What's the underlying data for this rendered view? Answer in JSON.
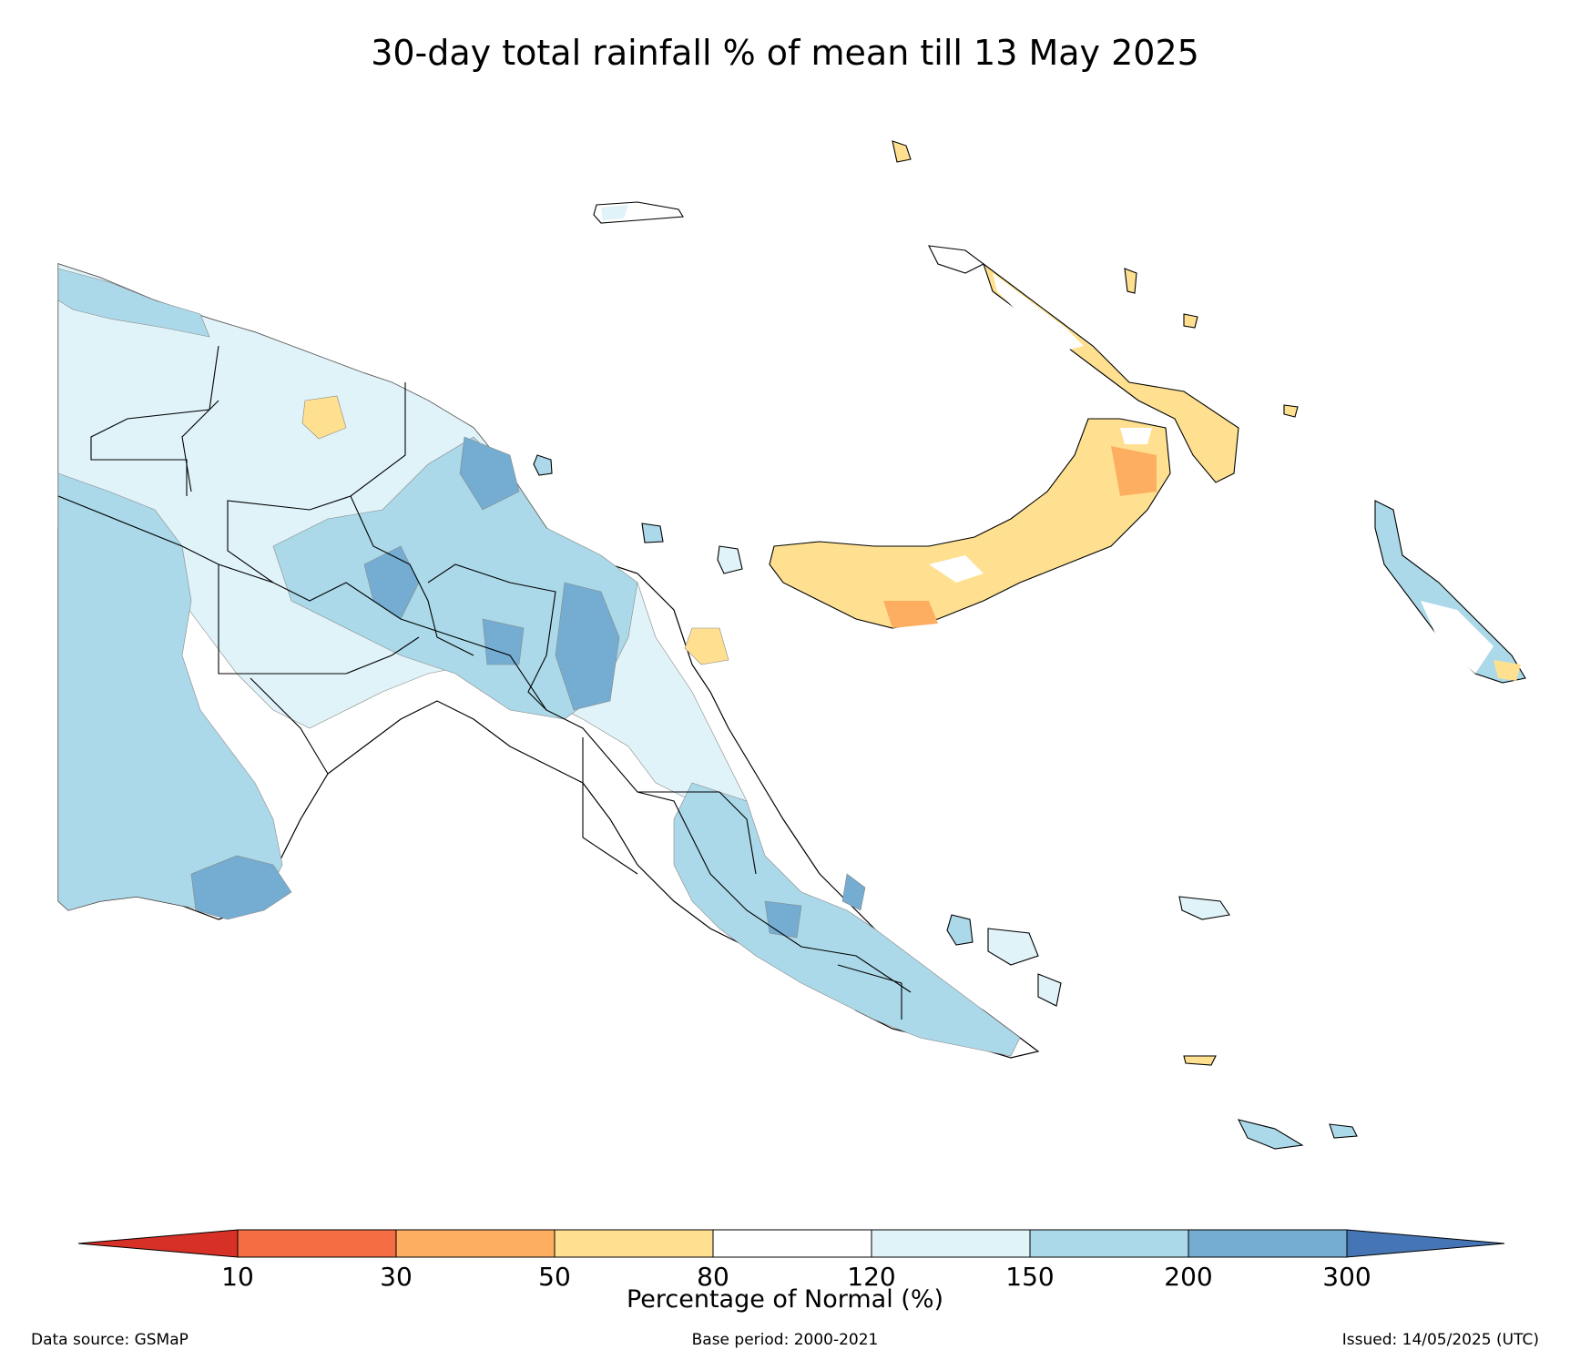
{
  "title": "30-day total rainfall % of mean till 13 May 2025",
  "colorbar": {
    "label": "Percentage of Normal (%)",
    "ticks": [
      "10",
      "30",
      "50",
      "80",
      "120",
      "150",
      "200",
      "300"
    ],
    "bins": [
      {
        "range": "<10",
        "color": "#d73027"
      },
      {
        "range": "10-30",
        "color": "#f46d43"
      },
      {
        "range": "30-50",
        "color": "#fdae61"
      },
      {
        "range": "50-80",
        "color": "#fee090"
      },
      {
        "range": "80-120",
        "color": "#ffffff"
      },
      {
        "range": "120-150",
        "color": "#e0f3f8"
      },
      {
        "range": "150-200",
        "color": "#abd9e9"
      },
      {
        "range": "200-300",
        "color": "#74add1"
      },
      {
        "range": ">300",
        "color": "#4575b4"
      }
    ]
  },
  "footer": {
    "source": "Data source: GSMaP",
    "base_period": "Base period: 2000-2021",
    "issued": "Issued: 14/05/2025 (UTC)"
  }
}
